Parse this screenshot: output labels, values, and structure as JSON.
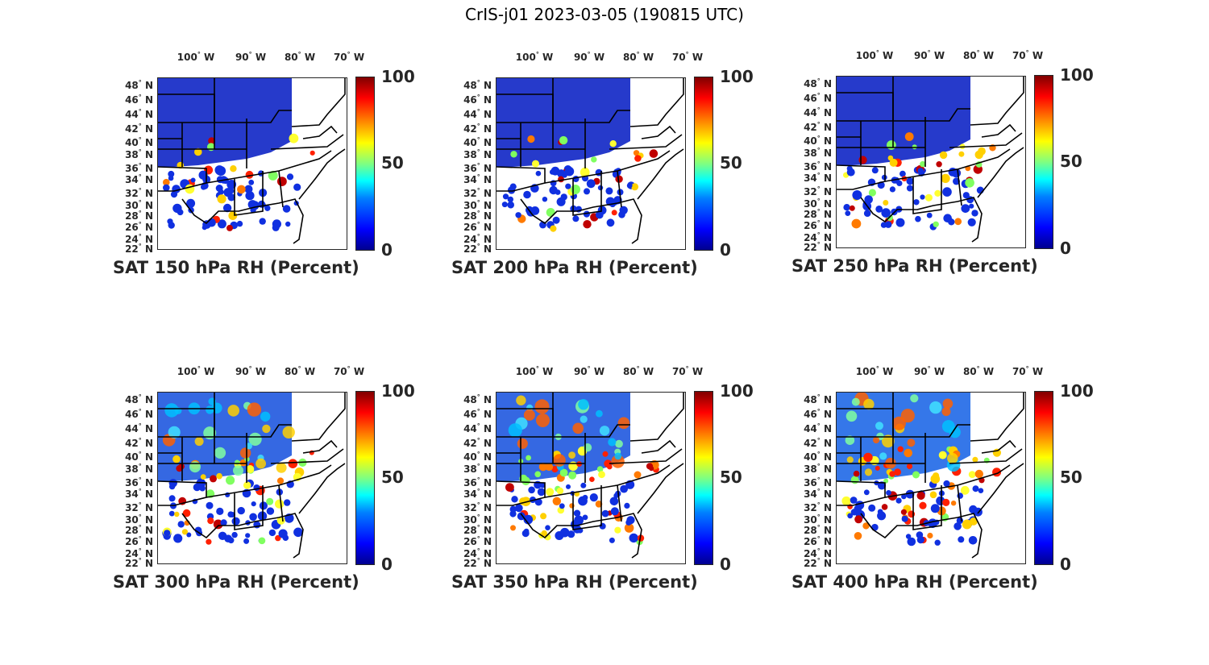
{
  "figure_title": "CrIS-j01 2023-03-05 (190815 UTC)",
  "lon_ticks": [
    "100",
    "90",
    "80",
    "70"
  ],
  "lon_hemisphere": "W",
  "lat_ticks": [
    "48",
    "46",
    "44",
    "42",
    "40",
    "38",
    "36",
    "34",
    "32",
    "30",
    "28",
    "26",
    "24",
    "22"
  ],
  "lat_hemisphere": "N",
  "colorbar": {
    "min": "0",
    "mid": "50",
    "max": "100",
    "colormap": "jet"
  },
  "panels": [
    {
      "title": "SAT 150 hPa RH (Percent)",
      "dominant_color": "#1a2fc8"
    },
    {
      "title": "SAT 200 hPa RH (Percent)",
      "dominant_color": "#1a2fc8"
    },
    {
      "title": "SAT 250 hPa RH (Percent)",
      "dominant_color": "#1a2fc8"
    },
    {
      "title": "SAT 300 hPa RH (Percent)",
      "dominant_color": "#2a60e0"
    },
    {
      "title": "SAT 350 hPa RH (Percent)",
      "dominant_color": "#2a60e0"
    },
    {
      "title": "SAT 400 hPa RH (Percent)",
      "dominant_color": "#2a70e8"
    }
  ]
}
